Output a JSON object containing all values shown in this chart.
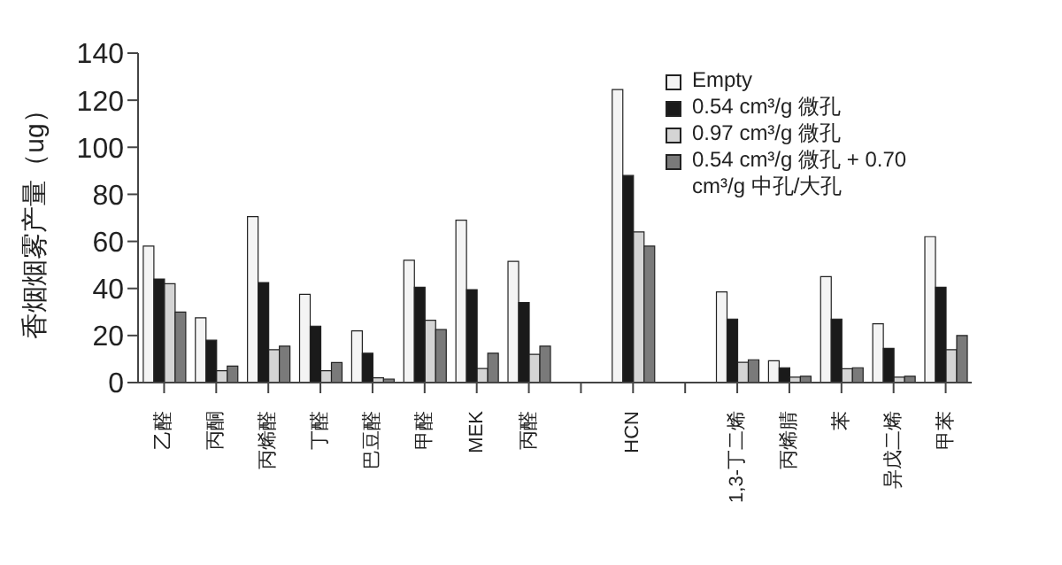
{
  "chart_data": {
    "type": "bar",
    "ylabel": "香烟烟雾产量（ug）",
    "categories": [
      "乙醛",
      "丙酮",
      "丙烯醛",
      "丁醛",
      "巴豆醛",
      "甲醛",
      "MEK",
      "丙醛",
      null,
      "HCN",
      null,
      "1,3-丁二烯",
      "丙烯腈",
      "苯",
      "异戊二烯",
      "甲苯"
    ],
    "series": [
      {
        "name": "Empty",
        "color": "#f4f4f4",
        "values": [
          58,
          27.5,
          70.5,
          37.5,
          22,
          52,
          69,
          51.5,
          null,
          124.5,
          null,
          38.5,
          9.3,
          45,
          25,
          62
        ]
      },
      {
        "name": "0.54 cm³/g 微孔",
        "color": "#1a1a1a",
        "values": [
          44,
          18,
          42.5,
          24,
          12.5,
          40.5,
          39.5,
          34,
          null,
          88,
          null,
          27,
          6.3,
          27,
          14.5,
          40.5
        ]
      },
      {
        "name": "0.97 cm³/g 微孔",
        "color": "#d4d4d4",
        "values": [
          42,
          5,
          14,
          5,
          2,
          26.5,
          6,
          12,
          null,
          64,
          null,
          8.6,
          2.3,
          5.9,
          2.3,
          14
        ]
      },
      {
        "name": "0.54 cm³/g 微孔 + 0.70 cm³/g 中孔/大孔",
        "color": "#7a7a7a",
        "values": [
          30,
          7,
          15.5,
          8.5,
          1.5,
          22.5,
          12.5,
          15.5,
          null,
          58,
          null,
          9.7,
          2.7,
          6.3,
          2.7,
          20
        ]
      }
    ],
    "ylim": [
      0,
      140
    ],
    "yticks": [
      0,
      20,
      40,
      60,
      80,
      100,
      120,
      140
    ],
    "grid": false,
    "legend": "top right"
  }
}
